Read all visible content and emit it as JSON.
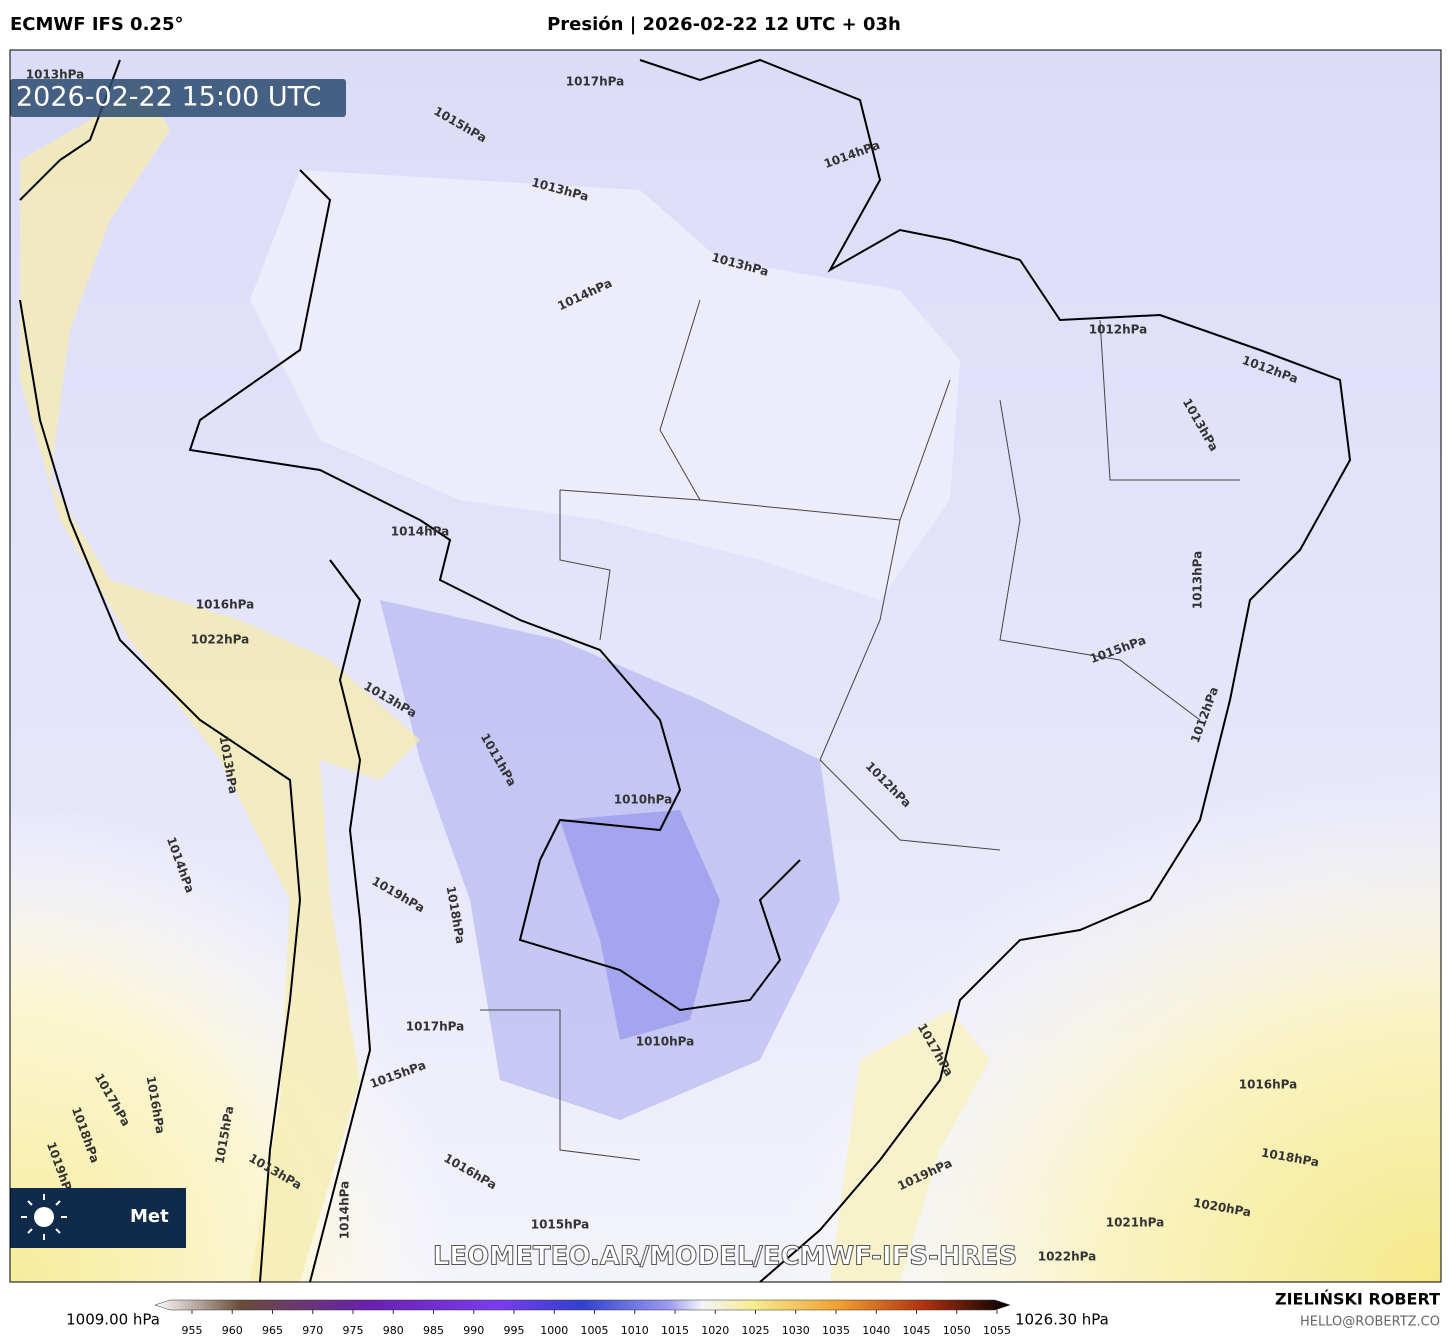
{
  "header": {
    "model": "ECMWF IFS 0.25°",
    "title": "Presión | 2026-02-22 12 UTC + 03h"
  },
  "map": {
    "timestamp": "2026-02-22 15:00 UTC",
    "watermark": "LEOMETEO.AR/MODEL/ECMWF-IFS-HRES",
    "logo_text": "Met",
    "contour_labels": [
      "1013hPa",
      "1017hPa",
      "1015hPa",
      "1013hPa",
      "1014hPa",
      "1013hPa",
      "1014hPa",
      "1012hPa",
      "1012hPa",
      "1013hPa",
      "1014hPa",
      "1013hPa",
      "1016hPa",
      "1015hPa",
      "1022hPa",
      "1013hPa",
      "1012hPa",
      "1011hPa",
      "1012hPa",
      "1013hPa",
      "1010hPa",
      "1014hPa",
      "1019hPa",
      "1018hPa",
      "1017hPa",
      "1010hPa",
      "1015hPa",
      "1017hPa",
      "1016hPa",
      "1017hPa",
      "1016hPa",
      "1018hPa",
      "1015hPa",
      "1018hPa",
      "1019hPa",
      "1016hPa",
      "1020hPa",
      "1021hPa",
      "1015hPa",
      "1022hPa",
      "1019hPa",
      "1013hPa",
      "1014hPa"
    ]
  },
  "colorbar": {
    "min_label": "1009.00 hPa",
    "max_label": "1026.30 hPa",
    "ticks": [
      955,
      960,
      965,
      970,
      975,
      980,
      985,
      990,
      995,
      1000,
      1005,
      1010,
      1015,
      1020,
      1025,
      1030,
      1035,
      1040,
      1045,
      1050,
      1055
    ]
  },
  "footer": {
    "author": "ZIELIŃSKI ROBERT",
    "email": "HELLO@ROBERTZ.CO"
  }
}
